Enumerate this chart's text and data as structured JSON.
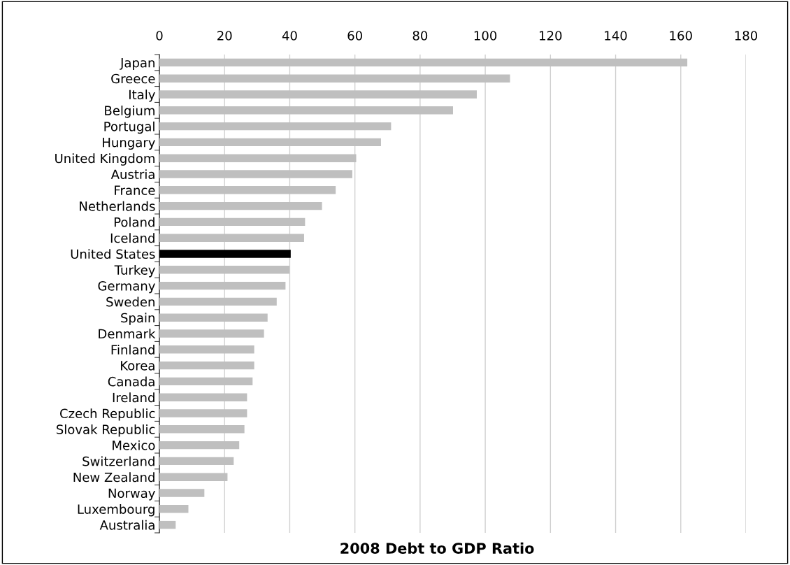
{
  "chart_data": {
    "type": "bar",
    "orientation": "horizontal",
    "title": "2008 Debt to GDP Ratio",
    "categories": [
      "Japan",
      "Greece",
      "Italy",
      "Belgium",
      "Portugal",
      "Hungary",
      "United Kingdom",
      "Austria",
      "France",
      "Netherlands",
      "Poland",
      "Iceland",
      "United States",
      "Turkey",
      "Germany",
      "Sweden",
      "Spain",
      "Denmark",
      "Finland",
      "Korea",
      "Canada",
      "Ireland",
      "Czech Republic",
      "Slovak Republic",
      "Mexico",
      "Switzerland",
      "New Zealand",
      "Norway",
      "Luxembourg",
      "Australia"
    ],
    "values": [
      162,
      107.6,
      97.4,
      90.1,
      71.1,
      68.0,
      60.4,
      59.2,
      54.1,
      49.9,
      44.7,
      44.4,
      40.3,
      39.9,
      38.7,
      36.0,
      33.2,
      32.1,
      29.1,
      29.1,
      28.6,
      26.9,
      26.9,
      26.1,
      24.5,
      22.8,
      20.9,
      13.8,
      8.9,
      5.0
    ],
    "colors": [
      "#bfbfbf",
      "#bfbfbf",
      "#bfbfbf",
      "#bfbfbf",
      "#bfbfbf",
      "#bfbfbf",
      "#bfbfbf",
      "#bfbfbf",
      "#bfbfbf",
      "#bfbfbf",
      "#bfbfbf",
      "#bfbfbf",
      "#000000",
      "#bfbfbf",
      "#bfbfbf",
      "#bfbfbf",
      "#bfbfbf",
      "#bfbfbf",
      "#bfbfbf",
      "#bfbfbf",
      "#bfbfbf",
      "#bfbfbf",
      "#bfbfbf",
      "#bfbfbf",
      "#bfbfbf",
      "#bfbfbf",
      "#bfbfbf",
      "#bfbfbf",
      "#bfbfbf",
      "#bfbfbf"
    ],
    "xlim": [
      0,
      180
    ],
    "xticks": [
      0,
      20,
      40,
      60,
      80,
      100,
      120,
      140,
      160,
      180
    ],
    "grid": "x"
  }
}
